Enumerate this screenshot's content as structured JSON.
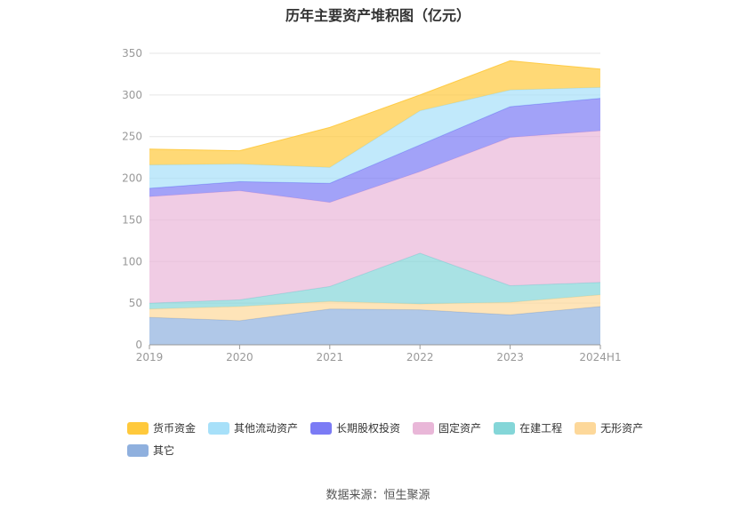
{
  "chart_data": {
    "type": "area",
    "stacked": true,
    "title": "历年主要资产堆积图（亿元）",
    "categories": [
      "2019",
      "2020",
      "2021",
      "2022",
      "2023",
      "2024H1"
    ],
    "ylim": [
      0,
      350
    ],
    "yticks": [
      0,
      50,
      100,
      150,
      200,
      250,
      300,
      350
    ],
    "grid": true,
    "legend_position": "bottom-left",
    "series": [
      {
        "name": "其它",
        "color": "#8fb0de",
        "values": [
          33,
          29,
          43,
          42,
          36,
          46
        ]
      },
      {
        "name": "无形资产",
        "color": "#fdd89a",
        "values": [
          10,
          17,
          9,
          7,
          15,
          14
        ]
      },
      {
        "name": "在建工程",
        "color": "#84d6d8",
        "values": [
          7,
          8,
          18,
          61,
          20,
          15
        ]
      },
      {
        "name": "固定资产",
        "color": "#e9b7d8",
        "values": [
          128,
          131,
          101,
          98,
          178,
          182
        ]
      },
      {
        "name": "长期股权投资",
        "color": "#7b7bf5",
        "values": [
          10,
          11,
          23,
          32,
          37,
          39
        ]
      },
      {
        "name": "其他流动资产",
        "color": "#a7e0f9",
        "values": [
          28,
          21,
          19,
          41,
          20,
          13
        ]
      },
      {
        "name": "货币资金",
        "color": "#ffc93c",
        "values": [
          19,
          16,
          48,
          19,
          35,
          22
        ]
      }
    ],
    "legend_order": [
      "货币资金",
      "其他流动资产",
      "长期股权投资",
      "固定资产",
      "在建工程",
      "无形资产",
      "其它"
    ]
  },
  "source": "数据来源：恒生聚源"
}
